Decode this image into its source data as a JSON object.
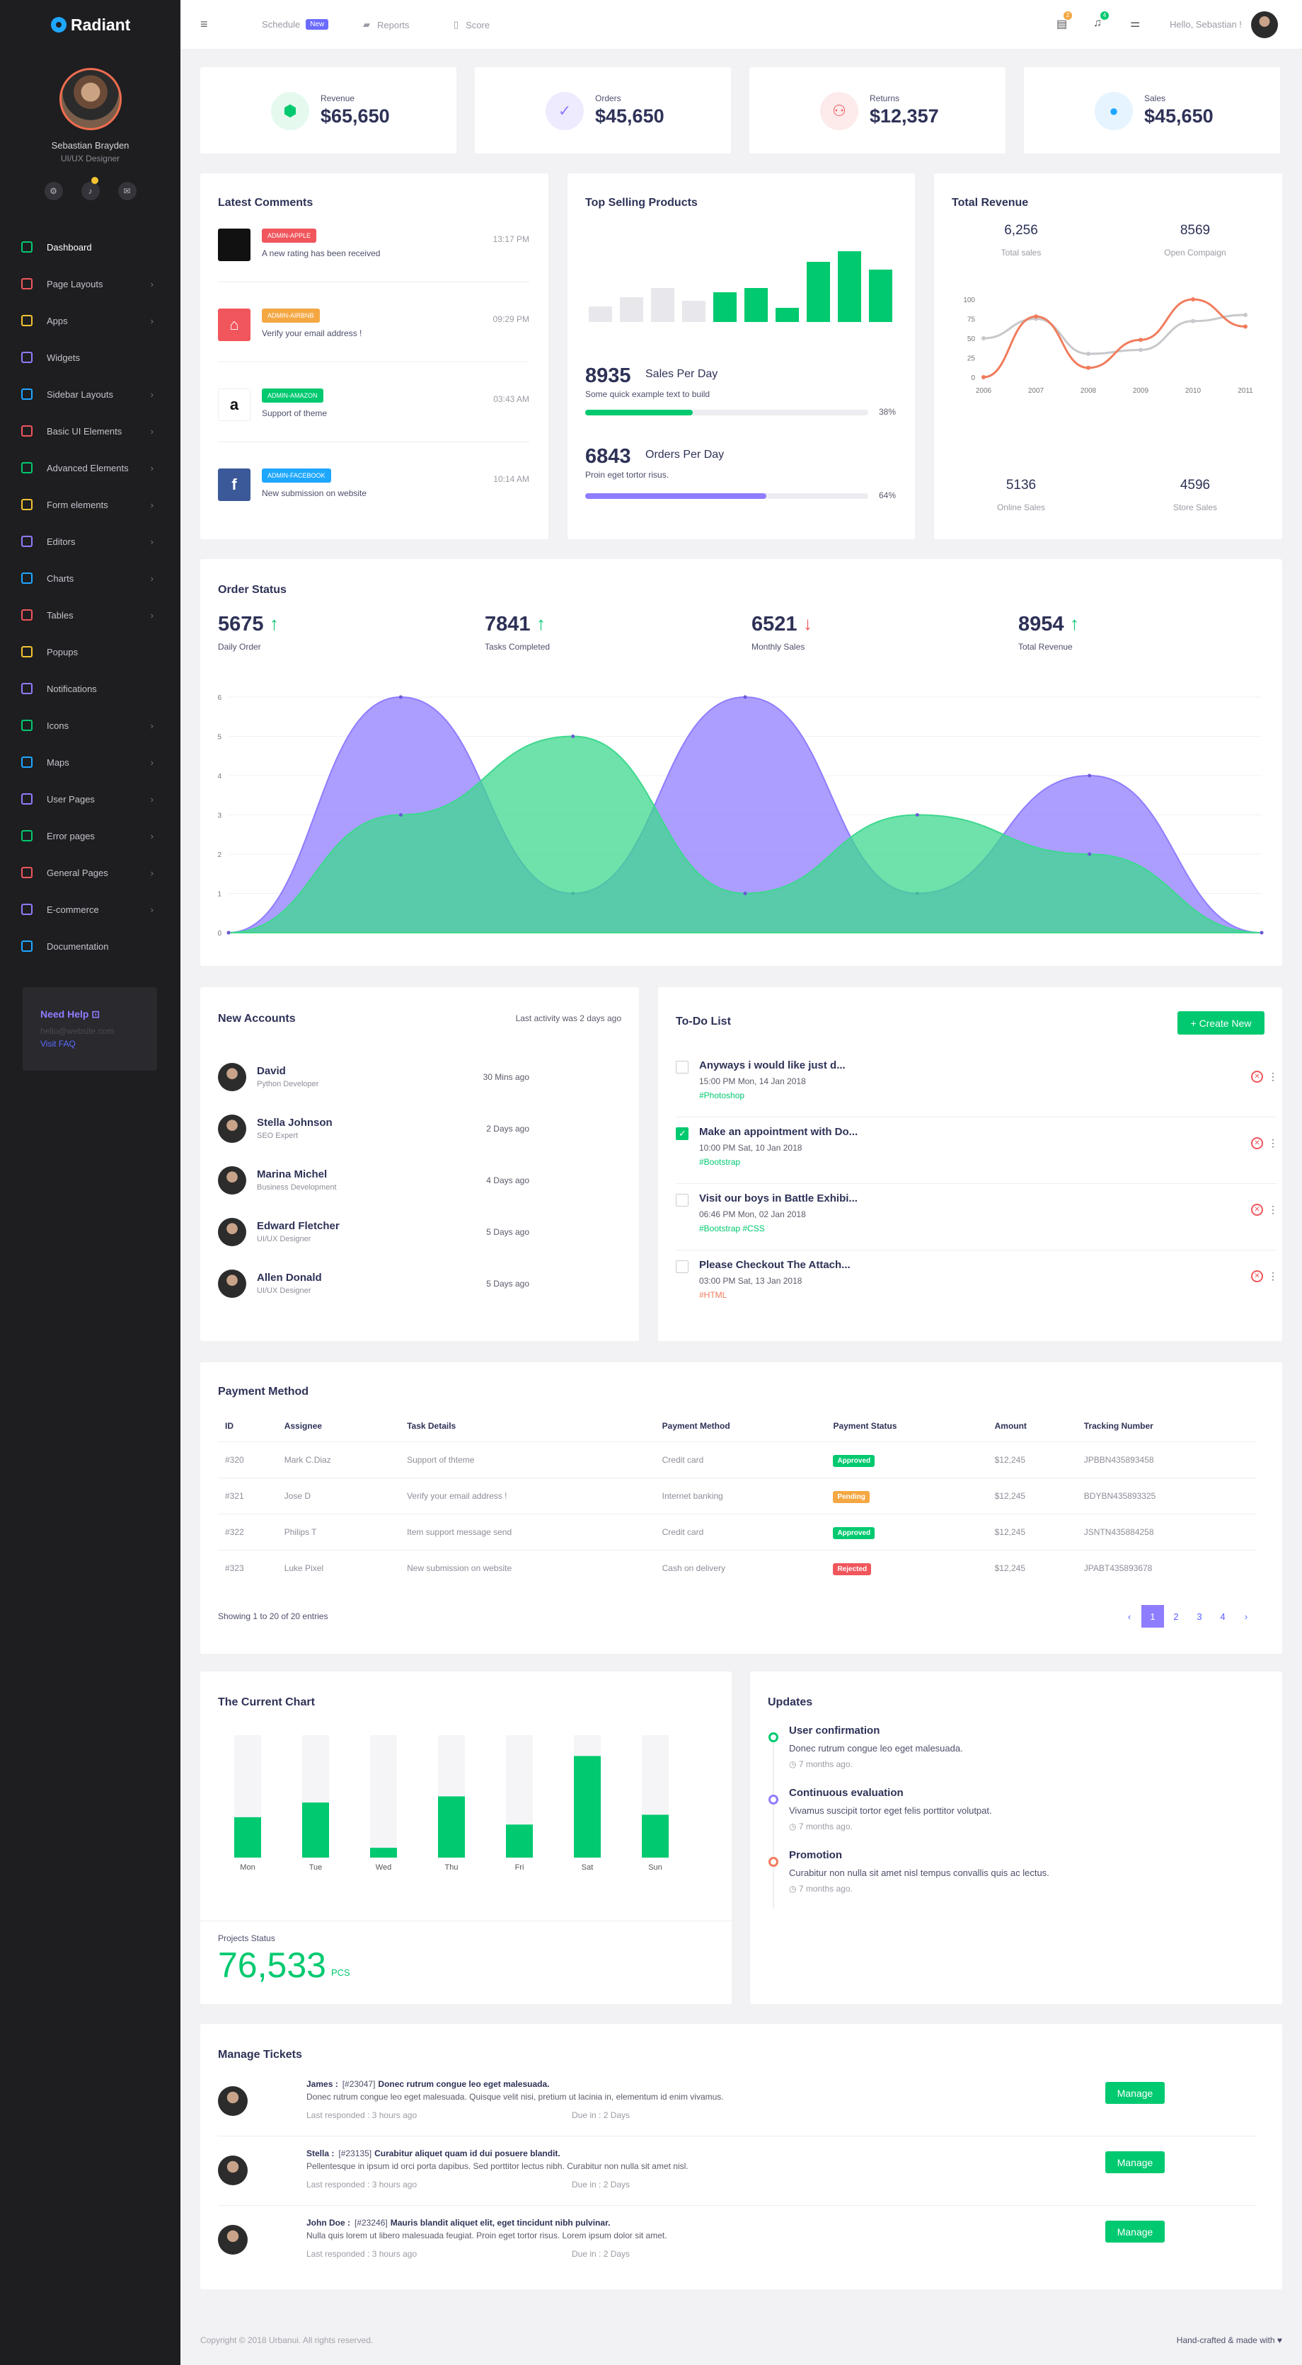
{
  "brand": {
    "name": "Radiant"
  },
  "profile": {
    "name": "Sebastian Brayden",
    "role": "UI/UX Designer"
  },
  "sidebar": {
    "items": [
      {
        "label": "Dashboard",
        "color": "#00c96f"
      },
      {
        "label": "Page Layouts",
        "color": "#f0565c"
      },
      {
        "label": "Apps",
        "color": "#f4c430"
      },
      {
        "label": "Widgets",
        "color": "#8f7dff"
      },
      {
        "label": "Sidebar Layouts",
        "color": "#1ea7ff"
      },
      {
        "label": "Basic UI Elements",
        "color": "#f0565c"
      },
      {
        "label": "Advanced Elements",
        "color": "#00c96f"
      },
      {
        "label": "Form elements",
        "color": "#f4c430"
      },
      {
        "label": "Editors",
        "color": "#8f7dff"
      },
      {
        "label": "Charts",
        "color": "#1ea7ff"
      },
      {
        "label": "Tables",
        "color": "#f0565c"
      },
      {
        "label": "Popups",
        "color": "#f4c430"
      },
      {
        "label": "Notifications",
        "color": "#8f7dff"
      },
      {
        "label": "Icons",
        "color": "#00c96f"
      },
      {
        "label": "Maps",
        "color": "#1ea7ff"
      },
      {
        "label": "User Pages",
        "color": "#8f7dff"
      },
      {
        "label": "Error pages",
        "color": "#00c96f"
      },
      {
        "label": "General Pages",
        "color": "#f0565c"
      },
      {
        "label": "E-commerce",
        "color": "#8f7dff"
      },
      {
        "label": "Documentation",
        "color": "#1ea7ff"
      }
    ],
    "help": {
      "title": "Need Help",
      "email": "hello@website.com",
      "faq": "Visit FAQ"
    }
  },
  "topbar": {
    "schedule": "Schedule",
    "new_badge": "New",
    "reports": "Reports",
    "score": "Score",
    "greeting": "Hello, Sebastian !",
    "msg_count": "2",
    "notif_count": "4"
  },
  "stats": [
    {
      "label": "Revenue",
      "value": "$65,650",
      "color": "#00c96f",
      "bg": "#e5f9ef"
    },
    {
      "label": "Orders",
      "value": "$45,650",
      "color": "#8f7dff",
      "bg": "#eeebff"
    },
    {
      "label": "Returns",
      "value": "$12,357",
      "color": "#f0565c",
      "bg": "#fdeaea"
    },
    {
      "label": "Sales",
      "value": "$45,650",
      "color": "#1ea7ff",
      "bg": "#e6f4ff"
    }
  ],
  "comments": {
    "title": "Latest Comments",
    "items": [
      {
        "tag": "ADMIN-APPLE",
        "text": "A new rating has been received",
        "time": "13:17 PM",
        "tagColor": "#f0565c",
        "logoBg": "#111",
        "logo": ""
      },
      {
        "tag": "ADMIN-AIRBNB",
        "text": "Verify your email address !",
        "time": "09:29 PM",
        "tagColor": "#f4a742",
        "logoBg": "#f0565c",
        "logo": "⌂"
      },
      {
        "tag": "ADMIN-AMAZON",
        "text": "Support of theme",
        "time": "03:43 AM",
        "tagColor": "#00c96f",
        "logoBg": "#fff",
        "logo": "a"
      },
      {
        "tag": "ADMIN-FACEBOOK",
        "text": "New submission on website",
        "time": "10:14 AM",
        "tagColor": "#1ea7ff",
        "logoBg": "#3b5998",
        "logo": "f"
      }
    ]
  },
  "top_selling": {
    "title": "Top Selling Products",
    "m1": {
      "value": "8935",
      "label": "Sales Per Day",
      "desc": "Some quick example text to build",
      "pct": "38%",
      "progress": 0.38
    },
    "m2": {
      "value": "6843",
      "label": "Orders Per Day",
      "desc": "Proin eget tortor risus.",
      "pct": "64%",
      "progress": 0.64
    },
    "bars": [
      {
        "v": 0.22,
        "c": "#e8e8ec"
      },
      {
        "v": 0.35,
        "c": "#e8e8ec"
      },
      {
        "v": 0.48,
        "c": "#e8e8ec"
      },
      {
        "v": 0.3,
        "c": "#e8e8ec"
      },
      {
        "v": 0.42,
        "c": "#00c96f"
      },
      {
        "v": 0.48,
        "c": "#00c96f"
      },
      {
        "v": 0.2,
        "c": "#00c96f"
      },
      {
        "v": 0.85,
        "c": "#00c96f"
      },
      {
        "v": 1,
        "c": "#00c96f"
      },
      {
        "v": 0.74,
        "c": "#00c96f"
      }
    ]
  },
  "total_revenue": {
    "title": "Total Revenue",
    "s1": {
      "value": "6,256",
      "label": "Total sales"
    },
    "s2": {
      "value": "8569",
      "label": "Open Compaign"
    },
    "s3": {
      "value": "5136",
      "label": "Online Sales"
    },
    "s4": {
      "value": "4596",
      "label": "Store Sales"
    }
  },
  "chart_data": [
    {
      "type": "line",
      "x": [
        "2006",
        "2007",
        "2008",
        "2009",
        "2010",
        "2011"
      ],
      "ylim": [
        0,
        100
      ],
      "yticks": [
        "0",
        "25",
        "50",
        "75",
        "100"
      ],
      "series": [
        {
          "color": "#f07c5c",
          "values": [
            0,
            78,
            12,
            48,
            100,
            65
          ]
        },
        {
          "color": "#c8c8cc",
          "values": [
            50,
            75,
            30,
            35,
            72,
            80
          ]
        }
      ]
    },
    {
      "type": "area",
      "ylim": [
        0,
        6
      ],
      "yticks": [
        "0",
        "1",
        "2",
        "3",
        "4",
        "5",
        "6"
      ],
      "series": [
        {
          "color": "#8f7dff",
          "values": [
            0,
            6,
            1,
            6,
            1,
            4,
            0
          ],
          "x": [
            0,
            1,
            2,
            3,
            4,
            5,
            6
          ]
        },
        {
          "color": "#3ed88e",
          "values": [
            0,
            3,
            5,
            1,
            3,
            2,
            0
          ],
          "x": [
            0,
            1,
            2,
            3,
            4,
            5,
            6
          ]
        }
      ]
    },
    {
      "type": "bar",
      "categories": [
        "Mon",
        "Tue",
        "Wed",
        "Thu",
        "Fri",
        "Sat",
        "Sun"
      ],
      "values": [
        0.33,
        0.45,
        0.08,
        0.5,
        0.27,
        0.83,
        0.35
      ],
      "ylim": [
        0,
        1
      ]
    }
  ],
  "order_status": {
    "title": "Order Status",
    "stats": [
      {
        "value": "5675",
        "label": "Daily Order",
        "dir": "↑",
        "color": "#00c96f"
      },
      {
        "value": "7841",
        "label": "Tasks Completed",
        "dir": "↑",
        "color": "#00c96f"
      },
      {
        "value": "6521",
        "label": "Monthly Sales",
        "dir": "↓",
        "color": "#f0565c"
      },
      {
        "value": "8954",
        "label": "Total Revenue",
        "dir": "↑",
        "color": "#00c96f"
      }
    ]
  },
  "accounts": {
    "title": "New Accounts",
    "last": "Last activity was 2 days ago",
    "items": [
      {
        "name": "David",
        "role": "Python Developer",
        "ago": "30 Mins ago"
      },
      {
        "name": "Stella Johnson",
        "role": "SEO Expert",
        "ago": "2 Days ago"
      },
      {
        "name": "Marina Michel",
        "role": "Business Development",
        "ago": "4 Days ago"
      },
      {
        "name": "Edward Fletcher",
        "role": "UI/UX Designer",
        "ago": "5 Days ago"
      },
      {
        "name": "Allen Donald",
        "role": "UI/UX Designer",
        "ago": "5 Days ago"
      }
    ]
  },
  "todo": {
    "title": "To-Do List",
    "create": "+ Create New",
    "items": [
      {
        "title": "Anyways i would like just d...",
        "date": "15:00 PM Mon, 14 Jan 2018",
        "tags": "#Photoshop",
        "tagColor": "#00c96f",
        "checked": false
      },
      {
        "title": "Make an appointment with Do...",
        "date": "10:00 PM Sat, 10 Jan 2018",
        "tags": "#Bootstrap",
        "tagColor": "#00c96f",
        "checked": true
      },
      {
        "title": "Visit our boys in Battle Exhibi...",
        "date": "06:46 PM Mon, 02 Jan 2018",
        "tags": "#Bootstrap  #CSS",
        "tagColor": "#00c96f",
        "checked": false
      },
      {
        "title": "Please Checkout The Attach...",
        "date": "03:00 PM Sat, 13 Jan 2018",
        "tags": "#HTML",
        "tagColor": "#f07c5c",
        "checked": false
      }
    ]
  },
  "payment": {
    "title": "Payment Method",
    "headers": [
      "ID",
      "Assignee",
      "Task Details",
      "Payment Method",
      "Payment Status",
      "Amount",
      "Tracking Number"
    ],
    "rows": [
      [
        "#320",
        "Mark C.Diaz",
        "Support of thteme",
        "Credit card",
        "Approved",
        "$12,245",
        "JPBBN435893458"
      ],
      [
        "#321",
        "Jose D",
        "Verify your email address !",
        "Internet banking",
        "Pending",
        "$12,245",
        "BDYBN435893325"
      ],
      [
        "#322",
        "Philips T",
        "Item support message send",
        "Credit card",
        "Approved",
        "$12,245",
        "JSNTN435884258"
      ],
      [
        "#323",
        "Luke Pixel",
        "New submission on website",
        "Cash on delivery",
        "Rejected",
        "$12,245",
        "JPABT435893678"
      ]
    ],
    "status_colors": {
      "Approved": "#00c96f",
      "Pending": "#f4a742",
      "Rejected": "#f0565c"
    },
    "showing": "Showing 1 to 20 of 20 entries",
    "pages": [
      "‹",
      "1",
      "2",
      "3",
      "4",
      "›"
    ]
  },
  "current_chart": {
    "title": "The Current Chart",
    "proj_label": "Projects Status",
    "proj_value": "76,533",
    "proj_unit": "PCS"
  },
  "updates": {
    "title": "Updates",
    "items": [
      {
        "title": "User confirmation",
        "desc": "Donec rutrum congue leo eget malesuada.",
        "ago": "7 months ago.",
        "color": "#00c96f"
      },
      {
        "title": "Continuous evaluation",
        "desc": "Vivamus suscipit tortor eget felis porttitor volutpat.",
        "ago": "7 months ago.",
        "color": "#8f7dff"
      },
      {
        "title": "Promotion",
        "desc": "Curabitur non nulla sit amet nisl tempus convallis quis ac lectus.",
        "ago": "7 months ago.",
        "color": "#f07c5c"
      }
    ]
  },
  "tickets": {
    "title": "Manage Tickets",
    "items": [
      {
        "name": "James :",
        "ref": "[#23047]",
        "subject": "Donec rutrum congue leo eget malesuada.",
        "body": "Donec rutrum congue leo eget malesuada. Quisque velit nisi, pretium ut lacinia in, elementum id enim vivamus.",
        "resp": "Last responded :  3 hours ago",
        "due": "Due in :  2 Days",
        "btn": "Manage"
      },
      {
        "name": "Stella :",
        "ref": "[#23135]",
        "subject": "Curabitur aliquet quam id dui posuere blandit.",
        "body": "Pellentesque in ipsum id orci porta dapibus. Sed porttitor lectus nibh. Curabitur non nulla sit amet nisl.",
        "resp": "Last responded :  3 hours ago",
        "due": "Due in :  2 Days",
        "btn": "Manage"
      },
      {
        "name": "John Doe :",
        "ref": "[#23246]",
        "subject": "Mauris blandit aliquet elit, eget tincidunt nibh pulvinar.",
        "body": "Nulla quis lorem ut libero malesuada feugiat. Proin eget tortor risus. Lorem ipsum dolor sit amet.",
        "resp": "Last responded :  3 hours ago",
        "due": "Due in :  2 Days",
        "btn": "Manage"
      }
    ]
  },
  "footer": {
    "copyright": "Copyright © 2018 Urbanui. All rights reserved.",
    "made": "Hand-crafted & made with ♥"
  }
}
